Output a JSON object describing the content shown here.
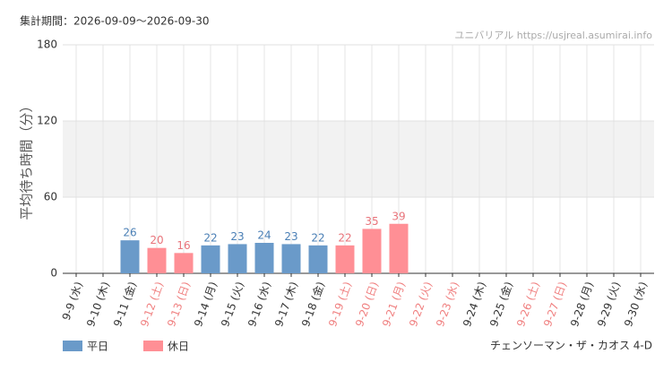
{
  "chart_data": {
    "type": "bar",
    "subtitle": "集計期間：2026-09-09〜2026-09-30",
    "source": "ユニバリアル https://usjreal.asumirai.info",
    "attraction": "チェンソーマン・ザ・カオス 4-D",
    "ylabel": "平均待ち時間（分）",
    "categories": [
      "9-9 (水)",
      "9-10 (木)",
      "9-11 (金)",
      "9-12 (土)",
      "9-13 (日)",
      "9-14 (月)",
      "9-15 (火)",
      "9-16 (水)",
      "9-17 (木)",
      "9-18 (金)",
      "9-19 (土)",
      "9-20 (日)",
      "9-21 (月)",
      "9-22 (火)",
      "9-23 (水)",
      "9-24 (木)",
      "9-25 (金)",
      "9-26 (土)",
      "9-27 (日)",
      "9-28 (月)",
      "9-29 (火)",
      "9-30 (水)"
    ],
    "category_colors": [
      "#333333",
      "#333333",
      "#333333",
      "#f08080",
      "#f08080",
      "#333333",
      "#333333",
      "#333333",
      "#333333",
      "#333333",
      "#f08080",
      "#f08080",
      "#f08080",
      "#f08080",
      "#f08080",
      "#333333",
      "#333333",
      "#f08080",
      "#f08080",
      "#333333",
      "#333333",
      "#333333"
    ],
    "series": [
      {
        "name": "平日",
        "color": "#6a9ac9",
        "label_color": "#4a7fb5",
        "values": [
          null,
          null,
          26,
          null,
          null,
          22,
          23,
          24,
          23,
          22,
          null,
          null,
          null,
          null,
          null,
          null,
          null,
          null,
          null,
          null,
          null,
          null
        ]
      },
      {
        "name": "休日",
        "color": "#ff8f95",
        "label_color": "#e8737a",
        "values": [
          null,
          null,
          null,
          20,
          16,
          null,
          null,
          null,
          null,
          null,
          22,
          35,
          39,
          null,
          null,
          null,
          null,
          null,
          null,
          null,
          null,
          null
        ]
      }
    ],
    "ylim": [
      0,
      180
    ],
    "yticks": [
      0,
      60,
      120,
      180
    ],
    "band": [
      60,
      120
    ],
    "grid": true
  }
}
